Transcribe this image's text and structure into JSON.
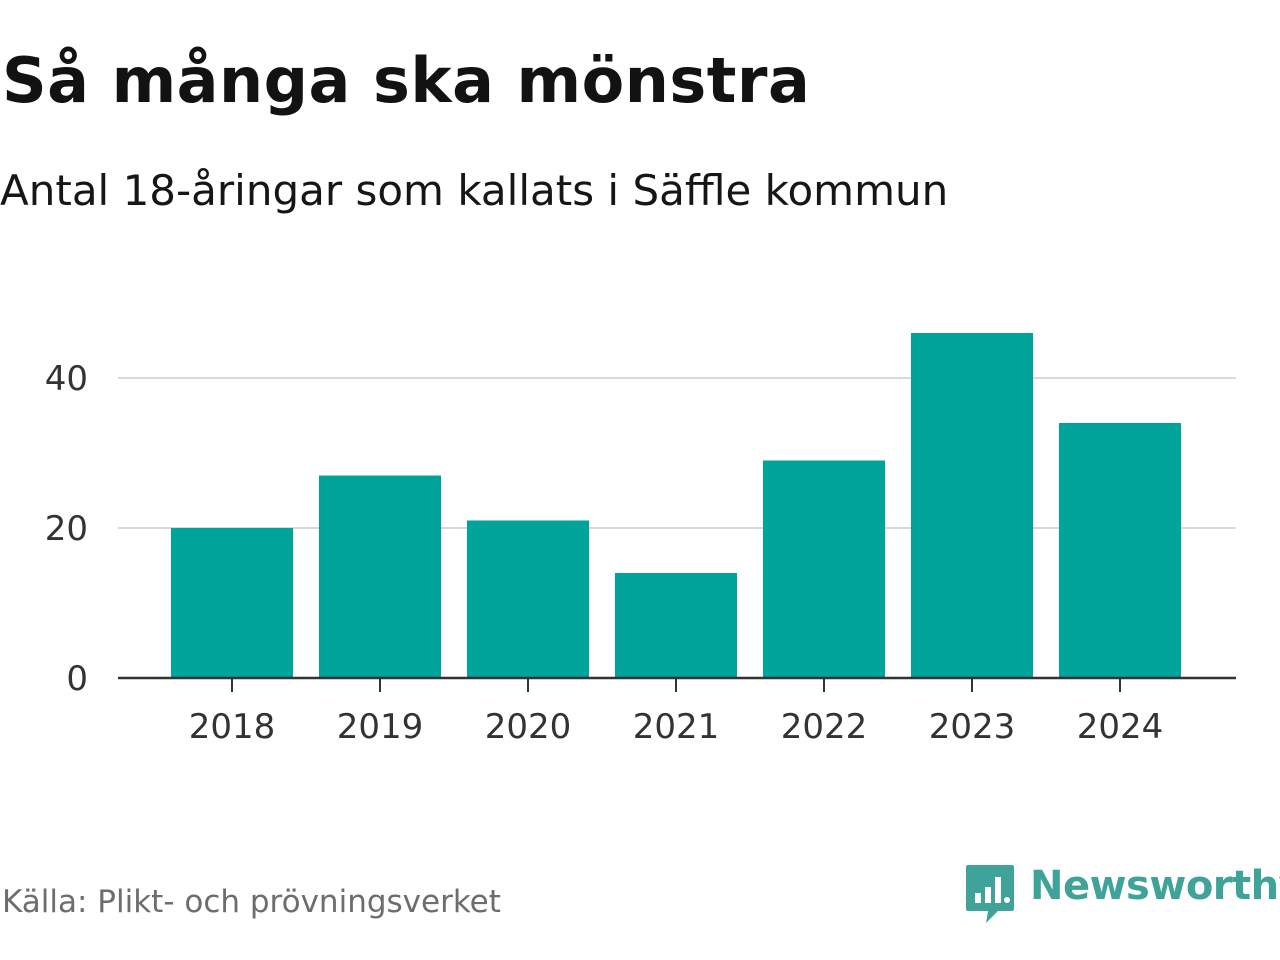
{
  "title": "Så många ska mönstra",
  "subtitle": "Antal 18-åringar som kallats i Säffle kommun",
  "source": "Källa: Plikt- och prövningsverket",
  "brand": {
    "name": "Newsworthy",
    "color": "#3fa39a",
    "icon": "newsworthy-logo-icon"
  },
  "colors": {
    "bar": "#00a39a",
    "grid": "#d9d9d9",
    "axis": "#333333"
  },
  "chart_data": {
    "type": "bar",
    "title": "Så många ska mönstra",
    "subtitle": "Antal 18-åringar som kallats i Säffle kommun",
    "categories": [
      "2018",
      "2019",
      "2020",
      "2021",
      "2022",
      "2023",
      "2024"
    ],
    "values": [
      20,
      27,
      21,
      14,
      29,
      46,
      34
    ],
    "xlabel": "",
    "ylabel": "",
    "ylim": [
      0,
      50
    ],
    "yticks": [
      0,
      20,
      40
    ],
    "grid": true,
    "legend": "none"
  }
}
